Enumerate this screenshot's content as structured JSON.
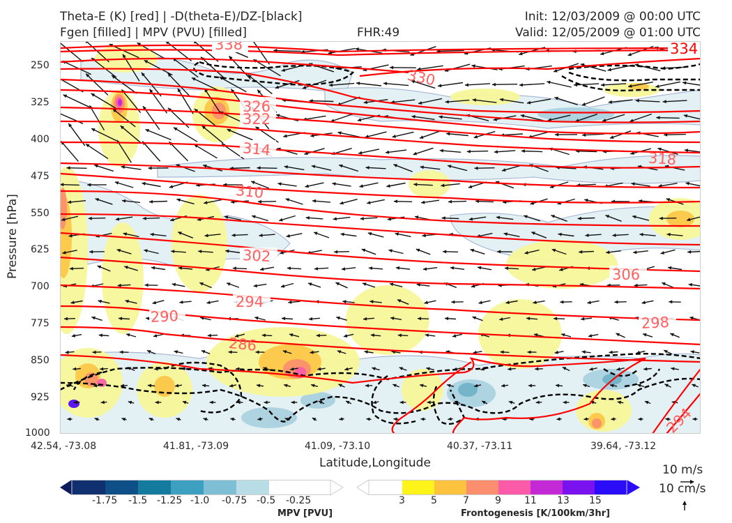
{
  "header": {
    "title_line1": "Theta-E (K) [red] | -D(theta-E)/DZ-[black]",
    "title_line2": "Fgen [filled] | MPV (PVU) [filled]",
    "fhr": "FHR:49",
    "init": "Init: 12/03/2009 @ 00:00 UTC",
    "valid": "Valid: 12/05/2009 @ 01:00 UTC"
  },
  "chart_data": {
    "type": "cross-section",
    "xlabel": "Latitude,Longitude",
    "ylabel": "Pressure [hPa]",
    "x_ticks": [
      "42.54, -73.08",
      "41.81, -73.09",
      "41.09, -73.10",
      "40.37, -73.11",
      "39.64, -73.12"
    ],
    "y_ticks": [
      "250",
      "325",
      "400",
      "475",
      "550",
      "625",
      "700",
      "775",
      "850",
      "925",
      "1000"
    ],
    "ylim": [
      1000,
      190
    ],
    "theta_e_contour_labels": [
      "338",
      "334",
      "330",
      "326",
      "322",
      "318",
      "314",
      "310",
      "306",
      "302",
      "298",
      "294",
      "290",
      "286",
      "294"
    ],
    "theta_e_color": "#ff0000",
    "label_color": "#ff5f5f",
    "wind_key": {
      "horizontal": "10 m/s",
      "vertical": "10 cm/s"
    },
    "mpv_colorbar": {
      "title": "MPV [PVU]",
      "ticks": [
        "-1.75",
        "-1.5",
        "-1.25",
        "-1.0",
        "-0.75",
        "-0.5",
        "-0.25"
      ],
      "colors": [
        "#0c1a5e",
        "#10306f",
        "#0d4f86",
        "#147a9e",
        "#3ea0c0",
        "#7fbfd5",
        "#b9dde6",
        "#ffffff"
      ]
    },
    "fgen_colorbar": {
      "title": "Frontogenesis [K/100km/3hr]",
      "ticks": [
        "3",
        "5",
        "7",
        "9",
        "11",
        "13",
        "15"
      ],
      "colors": [
        "#ffffff",
        "#fff41a",
        "#fdc23e",
        "#fb8e6e",
        "#fa5aa8",
        "#c429d6",
        "#7a12f0",
        "#2b0cf8"
      ]
    }
  }
}
